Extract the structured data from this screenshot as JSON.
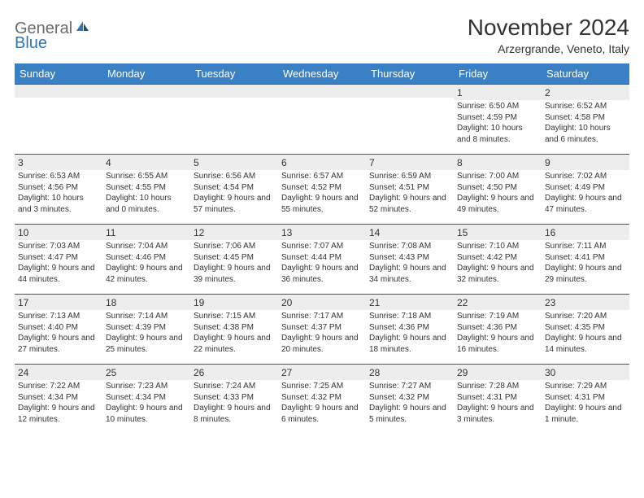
{
  "logo": {
    "general": "General",
    "blue": "Blue"
  },
  "title": "November 2024",
  "location": "Arzergrande, Veneto, Italy",
  "colors": {
    "header_bg": "#3a80c4",
    "row_border": "#2f5b87",
    "daynum_bg": "#ededed",
    "logo_gray": "#6b6b6b",
    "logo_blue": "#2f76b4"
  },
  "weekdays": [
    "Sunday",
    "Monday",
    "Tuesday",
    "Wednesday",
    "Thursday",
    "Friday",
    "Saturday"
  ],
  "weeks": [
    [
      {
        "n": "",
        "sr": "",
        "ss": "",
        "dl": ""
      },
      {
        "n": "",
        "sr": "",
        "ss": "",
        "dl": ""
      },
      {
        "n": "",
        "sr": "",
        "ss": "",
        "dl": ""
      },
      {
        "n": "",
        "sr": "",
        "ss": "",
        "dl": ""
      },
      {
        "n": "",
        "sr": "",
        "ss": "",
        "dl": ""
      },
      {
        "n": "1",
        "sr": "Sunrise: 6:50 AM",
        "ss": "Sunset: 4:59 PM",
        "dl": "Daylight: 10 hours and 8 minutes."
      },
      {
        "n": "2",
        "sr": "Sunrise: 6:52 AM",
        "ss": "Sunset: 4:58 PM",
        "dl": "Daylight: 10 hours and 6 minutes."
      }
    ],
    [
      {
        "n": "3",
        "sr": "Sunrise: 6:53 AM",
        "ss": "Sunset: 4:56 PM",
        "dl": "Daylight: 10 hours and 3 minutes."
      },
      {
        "n": "4",
        "sr": "Sunrise: 6:55 AM",
        "ss": "Sunset: 4:55 PM",
        "dl": "Daylight: 10 hours and 0 minutes."
      },
      {
        "n": "5",
        "sr": "Sunrise: 6:56 AM",
        "ss": "Sunset: 4:54 PM",
        "dl": "Daylight: 9 hours and 57 minutes."
      },
      {
        "n": "6",
        "sr": "Sunrise: 6:57 AM",
        "ss": "Sunset: 4:52 PM",
        "dl": "Daylight: 9 hours and 55 minutes."
      },
      {
        "n": "7",
        "sr": "Sunrise: 6:59 AM",
        "ss": "Sunset: 4:51 PM",
        "dl": "Daylight: 9 hours and 52 minutes."
      },
      {
        "n": "8",
        "sr": "Sunrise: 7:00 AM",
        "ss": "Sunset: 4:50 PM",
        "dl": "Daylight: 9 hours and 49 minutes."
      },
      {
        "n": "9",
        "sr": "Sunrise: 7:02 AM",
        "ss": "Sunset: 4:49 PM",
        "dl": "Daylight: 9 hours and 47 minutes."
      }
    ],
    [
      {
        "n": "10",
        "sr": "Sunrise: 7:03 AM",
        "ss": "Sunset: 4:47 PM",
        "dl": "Daylight: 9 hours and 44 minutes."
      },
      {
        "n": "11",
        "sr": "Sunrise: 7:04 AM",
        "ss": "Sunset: 4:46 PM",
        "dl": "Daylight: 9 hours and 42 minutes."
      },
      {
        "n": "12",
        "sr": "Sunrise: 7:06 AM",
        "ss": "Sunset: 4:45 PM",
        "dl": "Daylight: 9 hours and 39 minutes."
      },
      {
        "n": "13",
        "sr": "Sunrise: 7:07 AM",
        "ss": "Sunset: 4:44 PM",
        "dl": "Daylight: 9 hours and 36 minutes."
      },
      {
        "n": "14",
        "sr": "Sunrise: 7:08 AM",
        "ss": "Sunset: 4:43 PM",
        "dl": "Daylight: 9 hours and 34 minutes."
      },
      {
        "n": "15",
        "sr": "Sunrise: 7:10 AM",
        "ss": "Sunset: 4:42 PM",
        "dl": "Daylight: 9 hours and 32 minutes."
      },
      {
        "n": "16",
        "sr": "Sunrise: 7:11 AM",
        "ss": "Sunset: 4:41 PM",
        "dl": "Daylight: 9 hours and 29 minutes."
      }
    ],
    [
      {
        "n": "17",
        "sr": "Sunrise: 7:13 AM",
        "ss": "Sunset: 4:40 PM",
        "dl": "Daylight: 9 hours and 27 minutes."
      },
      {
        "n": "18",
        "sr": "Sunrise: 7:14 AM",
        "ss": "Sunset: 4:39 PM",
        "dl": "Daylight: 9 hours and 25 minutes."
      },
      {
        "n": "19",
        "sr": "Sunrise: 7:15 AM",
        "ss": "Sunset: 4:38 PM",
        "dl": "Daylight: 9 hours and 22 minutes."
      },
      {
        "n": "20",
        "sr": "Sunrise: 7:17 AM",
        "ss": "Sunset: 4:37 PM",
        "dl": "Daylight: 9 hours and 20 minutes."
      },
      {
        "n": "21",
        "sr": "Sunrise: 7:18 AM",
        "ss": "Sunset: 4:36 PM",
        "dl": "Daylight: 9 hours and 18 minutes."
      },
      {
        "n": "22",
        "sr": "Sunrise: 7:19 AM",
        "ss": "Sunset: 4:36 PM",
        "dl": "Daylight: 9 hours and 16 minutes."
      },
      {
        "n": "23",
        "sr": "Sunrise: 7:20 AM",
        "ss": "Sunset: 4:35 PM",
        "dl": "Daylight: 9 hours and 14 minutes."
      }
    ],
    [
      {
        "n": "24",
        "sr": "Sunrise: 7:22 AM",
        "ss": "Sunset: 4:34 PM",
        "dl": "Daylight: 9 hours and 12 minutes."
      },
      {
        "n": "25",
        "sr": "Sunrise: 7:23 AM",
        "ss": "Sunset: 4:34 PM",
        "dl": "Daylight: 9 hours and 10 minutes."
      },
      {
        "n": "26",
        "sr": "Sunrise: 7:24 AM",
        "ss": "Sunset: 4:33 PM",
        "dl": "Daylight: 9 hours and 8 minutes."
      },
      {
        "n": "27",
        "sr": "Sunrise: 7:25 AM",
        "ss": "Sunset: 4:32 PM",
        "dl": "Daylight: 9 hours and 6 minutes."
      },
      {
        "n": "28",
        "sr": "Sunrise: 7:27 AM",
        "ss": "Sunset: 4:32 PM",
        "dl": "Daylight: 9 hours and 5 minutes."
      },
      {
        "n": "29",
        "sr": "Sunrise: 7:28 AM",
        "ss": "Sunset: 4:31 PM",
        "dl": "Daylight: 9 hours and 3 minutes."
      },
      {
        "n": "30",
        "sr": "Sunrise: 7:29 AM",
        "ss": "Sunset: 4:31 PM",
        "dl": "Daylight: 9 hours and 1 minute."
      }
    ]
  ]
}
